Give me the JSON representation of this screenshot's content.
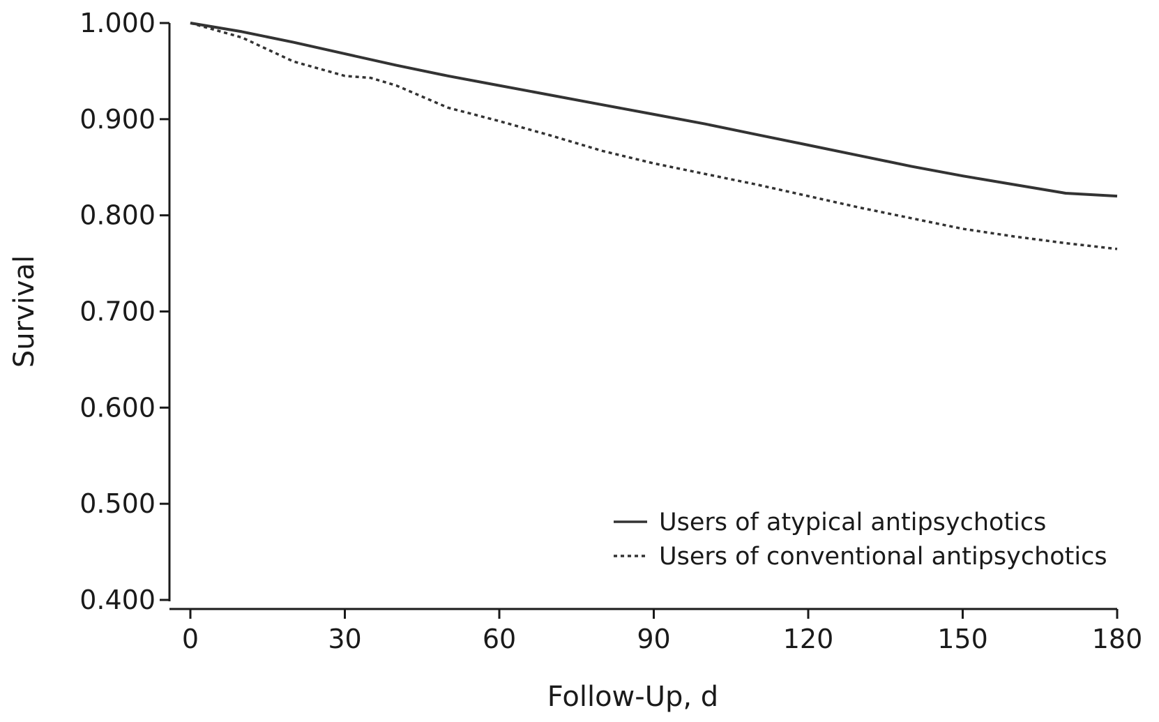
{
  "chart_data": {
    "type": "line",
    "title": "",
    "xlabel": "Follow-Up, d",
    "ylabel": "Survival",
    "xlim": [
      0,
      180
    ],
    "ylim": [
      0.4,
      1.0
    ],
    "x_ticks": [
      "0",
      "30",
      "60",
      "90",
      "120",
      "150",
      "180"
    ],
    "y_ticks": [
      "0.400",
      "0.500",
      "0.600",
      "0.700",
      "0.800",
      "0.900",
      "1.000"
    ],
    "grid": false,
    "legend_position": "bottom-right",
    "series": [
      {
        "name": "Users of atypical antipsychotics",
        "style": "solid",
        "color": "#333333",
        "x": [
          0,
          10,
          20,
          30,
          40,
          50,
          60,
          70,
          80,
          90,
          100,
          110,
          120,
          130,
          140,
          150,
          160,
          170,
          180
        ],
        "y": [
          1.0,
          0.991,
          0.98,
          0.968,
          0.956,
          0.945,
          0.935,
          0.925,
          0.915,
          0.905,
          0.895,
          0.884,
          0.873,
          0.862,
          0.851,
          0.841,
          0.832,
          0.823,
          0.82
        ]
      },
      {
        "name": "Users of conventional antipsychotics",
        "style": "dotted",
        "color": "#333333",
        "x": [
          0,
          10,
          20,
          30,
          35,
          40,
          50,
          60,
          70,
          80,
          90,
          100,
          110,
          120,
          130,
          140,
          150,
          160,
          170,
          180
        ],
        "y": [
          1.0,
          0.985,
          0.96,
          0.945,
          0.943,
          0.935,
          0.912,
          0.898,
          0.883,
          0.867,
          0.854,
          0.843,
          0.832,
          0.82,
          0.808,
          0.797,
          0.786,
          0.778,
          0.771,
          0.765
        ]
      }
    ]
  }
}
